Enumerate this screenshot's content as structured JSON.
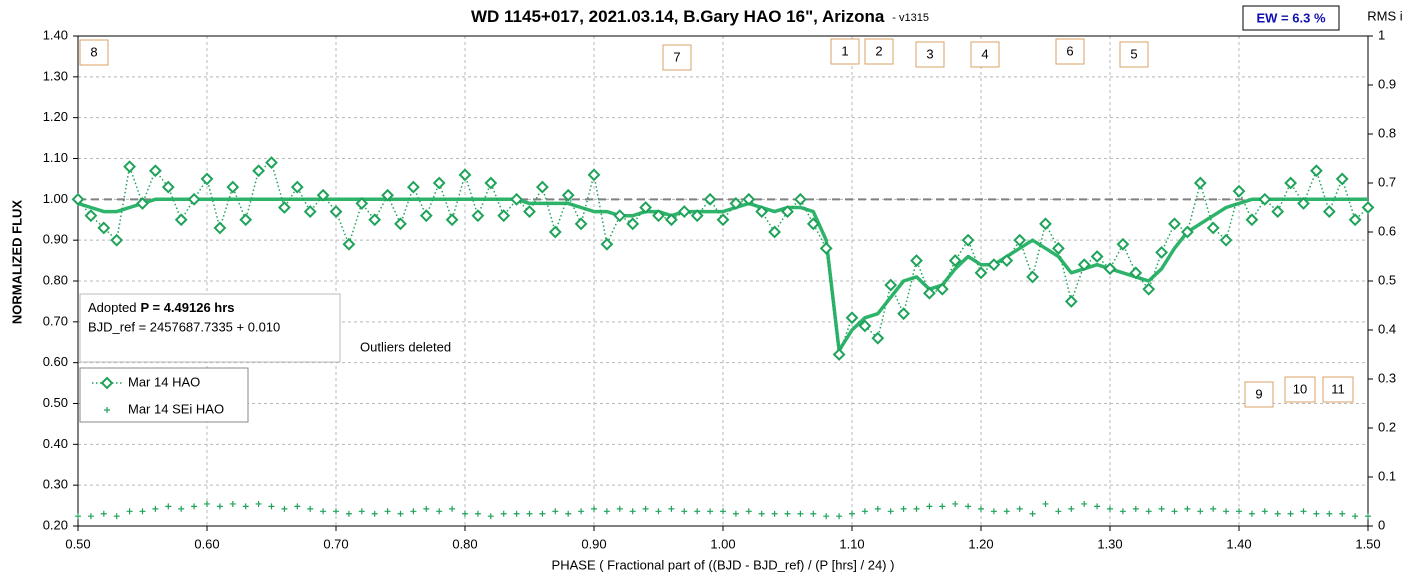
{
  "chart_data": {
    "type": "scatter",
    "title": "WD 1145+017, 2021.03.14, B.Gary HAO 16\", Arizona",
    "title_suffix": "- v1315",
    "badge": "EW = 6.3 %",
    "x_label": "PHASE ( Fractional part of ((BJD - BJD_ref) / (P [hrs] / 24) )",
    "y_label": "NORMALIZED FLUX",
    "y2_label": "RMS i",
    "info": {
      "prefix": "Adopted",
      "bold": "P = 4.49126 hrs",
      "line2": "BJD_ref = 2457687.7335 + 0.010"
    },
    "note": "Outliers deleted",
    "markers": [
      "8",
      "7",
      "1",
      "2",
      "3",
      "4",
      "6",
      "5",
      "9",
      "10",
      "11"
    ],
    "hline": 1.0,
    "grid": true,
    "legend": "lower left",
    "xlim": [
      0.5,
      1.5
    ],
    "ylim": [
      0.2,
      1.4
    ],
    "y2lim": [
      0,
      1
    ],
    "xticks": [
      {
        "value": 0.5,
        "label": "0.50"
      },
      {
        "value": 0.6,
        "label": "0.60"
      },
      {
        "value": 0.7,
        "label": "0.70"
      },
      {
        "value": 0.8,
        "label": "0.80"
      },
      {
        "value": 0.9,
        "label": "0.90"
      },
      {
        "value": 1.0,
        "label": "1.00"
      },
      {
        "value": 1.1,
        "label": "1.10"
      },
      {
        "value": 1.2,
        "label": "1.20"
      },
      {
        "value": 1.3,
        "label": "1.30"
      },
      {
        "value": 1.4,
        "label": "1.40"
      },
      {
        "value": 1.5,
        "label": "1.50"
      }
    ],
    "yticks": [
      {
        "value": 0.2,
        "label": "0.20"
      },
      {
        "value": 0.3,
        "label": "0.30"
      },
      {
        "value": 0.4,
        "label": "0.40"
      },
      {
        "value": 0.5,
        "label": "0.50"
      },
      {
        "value": 0.6,
        "label": "0.60"
      },
      {
        "value": 0.7,
        "label": "0.70"
      },
      {
        "value": 0.8,
        "label": "0.80"
      },
      {
        "value": 0.9,
        "label": "0.90"
      },
      {
        "value": 1.0,
        "label": "1.00"
      },
      {
        "value": 1.1,
        "label": "1.10"
      },
      {
        "value": 1.2,
        "label": "1.20"
      },
      {
        "value": 1.3,
        "label": "1.30"
      },
      {
        "value": 1.4,
        "label": "1.40"
      }
    ],
    "y2ticks": [
      0,
      0.1,
      0.2,
      0.3,
      0.4,
      0.5,
      0.6,
      0.7,
      0.8,
      0.9,
      1
    ],
    "x": [
      0.5,
      0.51,
      0.52,
      0.53,
      0.54,
      0.55,
      0.56,
      0.57,
      0.58,
      0.59,
      0.6,
      0.61,
      0.62,
      0.63,
      0.64,
      0.65,
      0.66,
      0.67,
      0.68,
      0.69,
      0.7,
      0.71,
      0.72,
      0.73,
      0.74,
      0.75,
      0.76,
      0.77,
      0.78,
      0.79,
      0.8,
      0.81,
      0.82,
      0.83,
      0.84,
      0.85,
      0.86,
      0.87,
      0.88,
      0.89,
      0.9,
      0.91,
      0.92,
      0.93,
      0.94,
      0.95,
      0.96,
      0.97,
      0.98,
      0.99,
      1.0,
      1.01,
      1.02,
      1.03,
      1.04,
      1.05,
      1.06,
      1.07,
      1.08,
      1.09,
      1.1,
      1.11,
      1.12,
      1.13,
      1.14,
      1.15,
      1.16,
      1.17,
      1.18,
      1.19,
      1.2,
      1.21,
      1.22,
      1.23,
      1.24,
      1.25,
      1.26,
      1.27,
      1.28,
      1.29,
      1.3,
      1.31,
      1.32,
      1.33,
      1.34,
      1.35,
      1.36,
      1.37,
      1.38,
      1.39,
      1.4,
      1.41,
      1.42,
      1.43,
      1.44,
      1.45,
      1.46,
      1.47,
      1.48,
      1.49,
      1.5
    ],
    "series": [
      {
        "name": "Mar 14 HAO",
        "color": "#1fa35a",
        "marker": "diamond",
        "values": [
          1.0,
          0.96,
          0.93,
          0.9,
          1.08,
          0.99,
          1.07,
          1.03,
          0.95,
          1.0,
          1.05,
          0.93,
          1.03,
          0.95,
          1.07,
          1.09,
          0.98,
          1.03,
          0.97,
          1.01,
          0.97,
          0.89,
          0.99,
          0.95,
          1.01,
          0.94,
          1.03,
          0.96,
          1.04,
          0.95,
          1.06,
          0.96,
          1.04,
          0.96,
          1.0,
          0.97,
          1.03,
          0.92,
          1.01,
          0.94,
          1.06,
          0.89,
          0.96,
          0.94,
          0.98,
          0.96,
          0.95,
          0.97,
          0.96,
          1.0,
          0.95,
          0.99,
          1.0,
          0.97,
          0.92,
          0.97,
          1.0,
          0.94,
          0.88,
          0.62,
          0.71,
          0.69,
          0.66,
          0.79,
          0.72,
          0.85,
          0.77,
          0.78,
          0.85,
          0.9,
          0.82,
          0.84,
          0.85,
          0.9,
          0.81,
          0.94,
          0.88,
          0.75,
          0.84,
          0.86,
          0.83,
          0.89,
          0.82,
          0.78,
          0.87,
          0.94,
          0.92,
          1.04,
          0.93,
          0.9,
          1.02,
          0.95,
          1.0,
          0.97,
          1.04,
          0.99,
          1.07,
          0.97,
          1.05,
          0.95,
          0.98
        ]
      },
      {
        "color": "#2db36a",
        "marker": "none",
        "values": [
          0.99,
          0.98,
          0.97,
          0.97,
          0.98,
          0.99,
          1.0,
          1.0,
          1.0,
          1.0,
          1.0,
          1.0,
          1.0,
          1.0,
          1.0,
          1.0,
          1.0,
          1.0,
          1.0,
          1.0,
          1.0,
          1.0,
          1.0,
          1.0,
          1.0,
          1.0,
          1.0,
          1.0,
          1.0,
          1.0,
          1.0,
          1.0,
          1.0,
          1.0,
          1.0,
          0.99,
          0.99,
          0.99,
          0.99,
          0.98,
          0.97,
          0.97,
          0.96,
          0.96,
          0.97,
          0.97,
          0.96,
          0.97,
          0.97,
          0.97,
          0.97,
          0.98,
          0.99,
          0.98,
          0.97,
          0.98,
          0.98,
          0.97,
          0.9,
          0.63,
          0.68,
          0.71,
          0.72,
          0.76,
          0.8,
          0.81,
          0.78,
          0.79,
          0.83,
          0.86,
          0.84,
          0.84,
          0.86,
          0.88,
          0.9,
          0.88,
          0.86,
          0.82,
          0.83,
          0.84,
          0.83,
          0.82,
          0.81,
          0.8,
          0.83,
          0.88,
          0.92,
          0.94,
          0.96,
          0.98,
          0.99,
          1.0,
          1.0,
          1.0,
          1.0,
          1.0,
          1.0,
          1.0,
          1.0,
          1.0,
          1.0
        ]
      },
      {
        "name": "Mar 14 SEi HAO",
        "color": "#1fa35a",
        "marker": "plus",
        "axis": "y2",
        "values": [
          0.02,
          0.02,
          0.025,
          0.02,
          0.03,
          0.03,
          0.035,
          0.04,
          0.035,
          0.04,
          0.045,
          0.04,
          0.045,
          0.04,
          0.045,
          0.04,
          0.035,
          0.04,
          0.035,
          0.03,
          0.03,
          0.025,
          0.03,
          0.025,
          0.03,
          0.025,
          0.03,
          0.035,
          0.03,
          0.035,
          0.025,
          0.025,
          0.02,
          0.025,
          0.025,
          0.025,
          0.025,
          0.03,
          0.025,
          0.03,
          0.035,
          0.03,
          0.035,
          0.03,
          0.035,
          0.03,
          0.035,
          0.03,
          0.03,
          0.03,
          0.03,
          0.025,
          0.03,
          0.025,
          0.025,
          0.025,
          0.025,
          0.025,
          0.02,
          0.02,
          0.025,
          0.03,
          0.035,
          0.03,
          0.035,
          0.035,
          0.04,
          0.04,
          0.045,
          0.04,
          0.035,
          0.03,
          0.03,
          0.035,
          0.025,
          0.045,
          0.03,
          0.035,
          0.045,
          0.04,
          0.035,
          0.03,
          0.035,
          0.03,
          0.035,
          0.03,
          0.035,
          0.03,
          0.035,
          0.03,
          0.03,
          0.025,
          0.03,
          0.025,
          0.025,
          0.03,
          0.025,
          0.025,
          0.025,
          0.02,
          0.02
        ]
      }
    ]
  }
}
